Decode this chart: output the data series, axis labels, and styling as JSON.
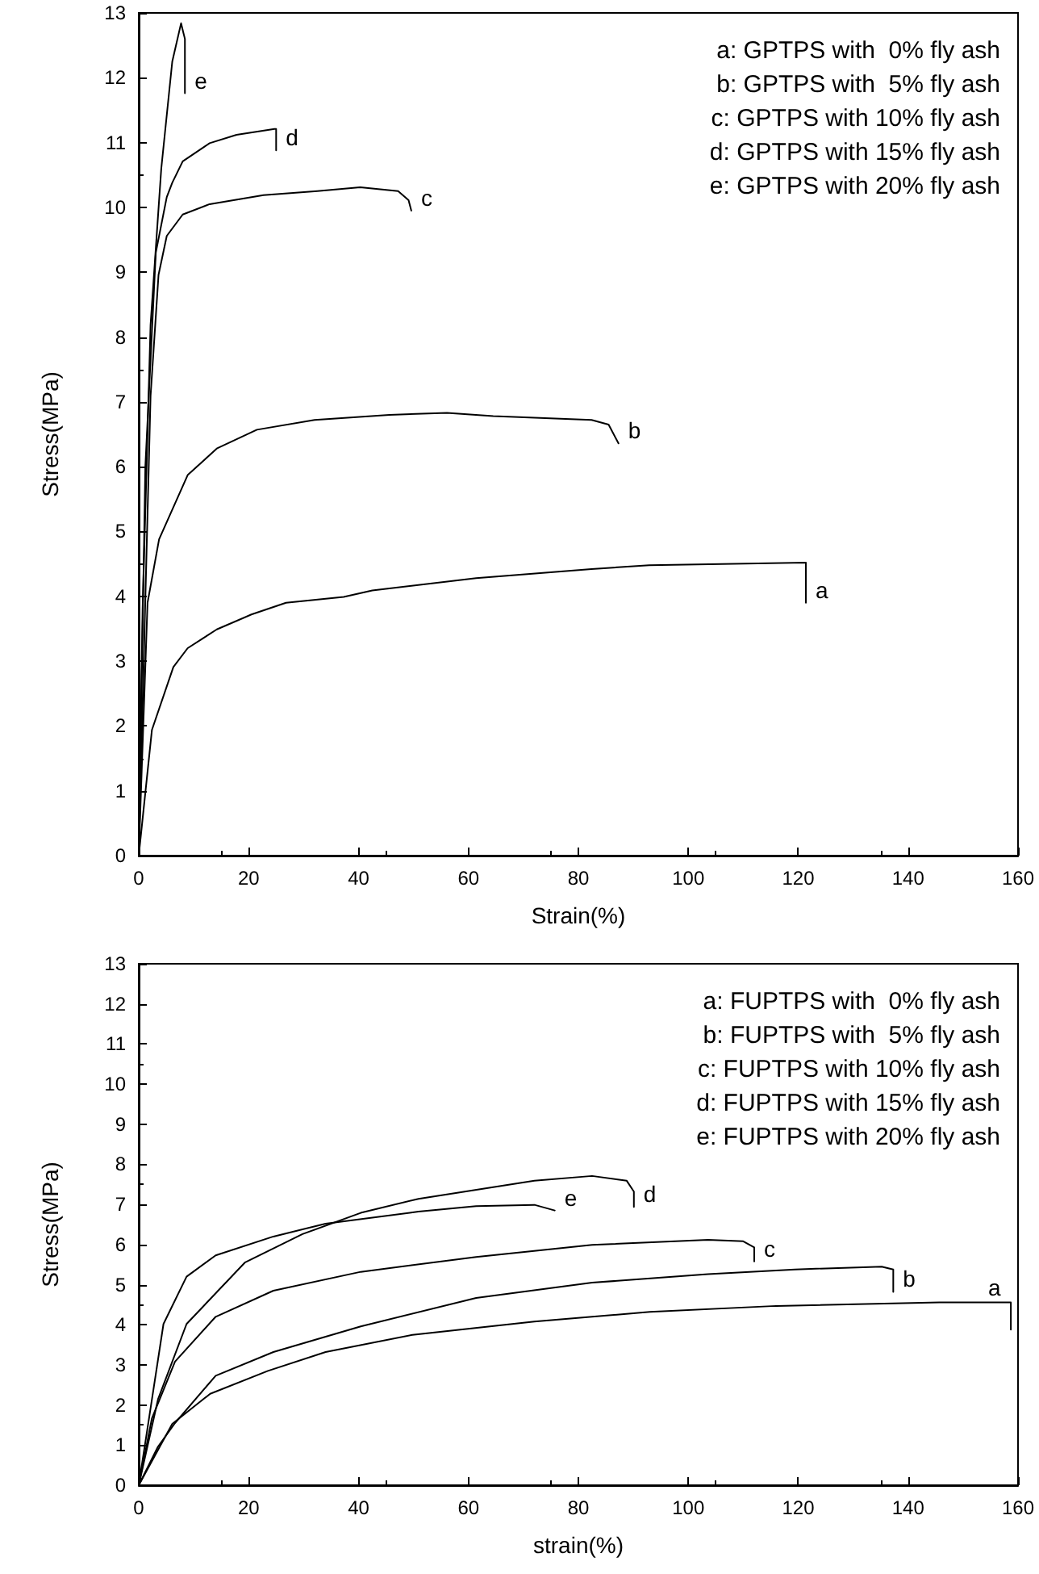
{
  "chart_data": [
    {
      "type": "line",
      "xlabel": "Strain(%)",
      "ylabel": "Stress(MPa)",
      "xlim": [
        0,
        160
      ],
      "xticks": [
        0,
        20,
        40,
        60,
        80,
        100,
        120,
        140,
        160
      ],
      "ylim": [
        0,
        13
      ],
      "yticks": [
        0,
        1,
        2,
        3,
        4,
        5,
        6,
        7,
        8,
        9,
        10,
        11,
        12,
        13
      ],
      "grid": false,
      "legend": false,
      "marker": "none",
      "line_style": "solid",
      "annotations": [
        "a: GPTPS with  0% fly ash",
        "b: GPTPS with  5% fly ash",
        "c: GPTPS with 10% fly ash",
        "d: GPTPS with 15% fly ash",
        "e: GPTPS with 20% fly ash"
      ],
      "series": [
        {
          "name": "a",
          "color": "#000000",
          "x": [
            0,
            2.4,
            6.3,
            8.9,
            14.2,
            20.5,
            26.8,
            37.3,
            42.5,
            61.4,
            82.4,
            92.9,
            121.4,
            121.4
          ],
          "values": [
            0,
            1.94,
            2.91,
            3.2,
            3.49,
            3.72,
            3.9,
            3.99,
            4.09,
            4.28,
            4.42,
            4.48,
            4.52,
            3.9
          ]
        },
        {
          "name": "b",
          "color": "#000000",
          "x": [
            0,
            1.6,
            3.7,
            8.9,
            14.2,
            21.5,
            32,
            45.6,
            56.1,
            64.5,
            82.4,
            85.5,
            87.3
          ],
          "values": [
            0,
            3.9,
            4.88,
            5.87,
            6.28,
            6.57,
            6.72,
            6.8,
            6.83,
            6.78,
            6.72,
            6.65,
            6.36
          ]
        },
        {
          "name": "c",
          "color": "#000000",
          "x": [
            0,
            2.15,
            3.6,
            5.1,
            8,
            12.9,
            22.7,
            32.5,
            40.3,
            47.2,
            49.1,
            49.6
          ],
          "values": [
            0,
            7.09,
            8.96,
            9.56,
            9.89,
            10.05,
            10.19,
            10.25,
            10.31,
            10.25,
            10.11,
            9.95
          ]
        },
        {
          "name": "d",
          "color": "#000000",
          "x": [
            0,
            1.2,
            3.1,
            5.1,
            6.1,
            8,
            12.9,
            17.8,
            24.7,
            25,
            25
          ],
          "values": [
            0,
            6.0,
            9.3,
            10.16,
            10.38,
            10.71,
            10.99,
            11.12,
            11.21,
            11.21,
            10.88
          ]
        },
        {
          "name": "e",
          "color": "#000000",
          "x": [
            0,
            0.7,
            2.15,
            4.1,
            6.1,
            7.7,
            8.1,
            8.4,
            8.4
          ],
          "values": [
            0,
            3.8,
            8.19,
            10.6,
            12.25,
            12.84,
            12.7,
            12.6,
            11.76
          ]
        }
      ]
    },
    {
      "type": "line",
      "xlabel": "strain(%)",
      "ylabel": "Stress(MPa)",
      "xlim": [
        0,
        160
      ],
      "xticks": [
        0,
        20,
        40,
        60,
        80,
        100,
        120,
        140,
        160
      ],
      "ylim": [
        0,
        13
      ],
      "yticks": [
        0,
        1,
        2,
        3,
        4,
        5,
        6,
        7,
        8,
        9,
        10,
        11,
        12,
        13
      ],
      "grid": false,
      "legend": false,
      "marker": "none",
      "line_style": "solid",
      "annotations": [
        "a: FUPTPS with  0% fly ash",
        "b: FUPTPS with  5% fly ash",
        "c: FUPTPS with 10% fly ash",
        "d: FUPTPS with 15% fly ash",
        "e: FUPTPS with 20% fly ash"
      ],
      "series": [
        {
          "name": "a",
          "color": "#000000",
          "x": [
            0,
            6.1,
            13,
            23.5,
            34,
            49.8,
            72,
            93,
            116,
            145.7,
            158.7,
            158.7
          ],
          "values": [
            0,
            1.53,
            2.28,
            2.85,
            3.32,
            3.75,
            4.08,
            4.32,
            4.47,
            4.56,
            4.56,
            3.88
          ]
        },
        {
          "name": "b",
          "color": "#000000",
          "x": [
            0,
            3.5,
            6.6,
            14,
            24.5,
            40.4,
            61.4,
            82.5,
            103.6,
            119.4,
            135.2,
            137.3,
            137.3
          ],
          "values": [
            0,
            0.96,
            1.55,
            2.73,
            3.32,
            3.96,
            4.67,
            5.05,
            5.26,
            5.38,
            5.45,
            5.38,
            4.82
          ]
        },
        {
          "name": "c",
          "color": "#000000",
          "x": [
            0,
            2.4,
            6.6,
            14,
            24.5,
            40.4,
            61.4,
            82.5,
            103.6,
            110,
            112,
            112
          ],
          "values": [
            0,
            1.67,
            3.08,
            4.2,
            4.85,
            5.32,
            5.69,
            5.99,
            6.12,
            6.08,
            5.93,
            5.58
          ]
        },
        {
          "name": "d",
          "color": "#000000",
          "x": [
            0,
            3.5,
            8.7,
            19.3,
            29.8,
            40.4,
            50.9,
            72,
            82.5,
            88.8,
            90.1,
            90.1
          ],
          "values": [
            0,
            2.14,
            4.02,
            5.55,
            6.26,
            6.79,
            7.14,
            7.59,
            7.71,
            7.59,
            7.32,
            6.94
          ]
        },
        {
          "name": "e",
          "color": "#000000",
          "x": [
            0,
            2.4,
            4.5,
            8.7,
            14,
            24.5,
            34,
            50.9,
            61.4,
            72,
            75.7
          ],
          "values": [
            0,
            2.14,
            4.02,
            5.2,
            5.73,
            6.2,
            6.52,
            6.82,
            6.96,
            6.99,
            6.85
          ]
        }
      ]
    }
  ]
}
